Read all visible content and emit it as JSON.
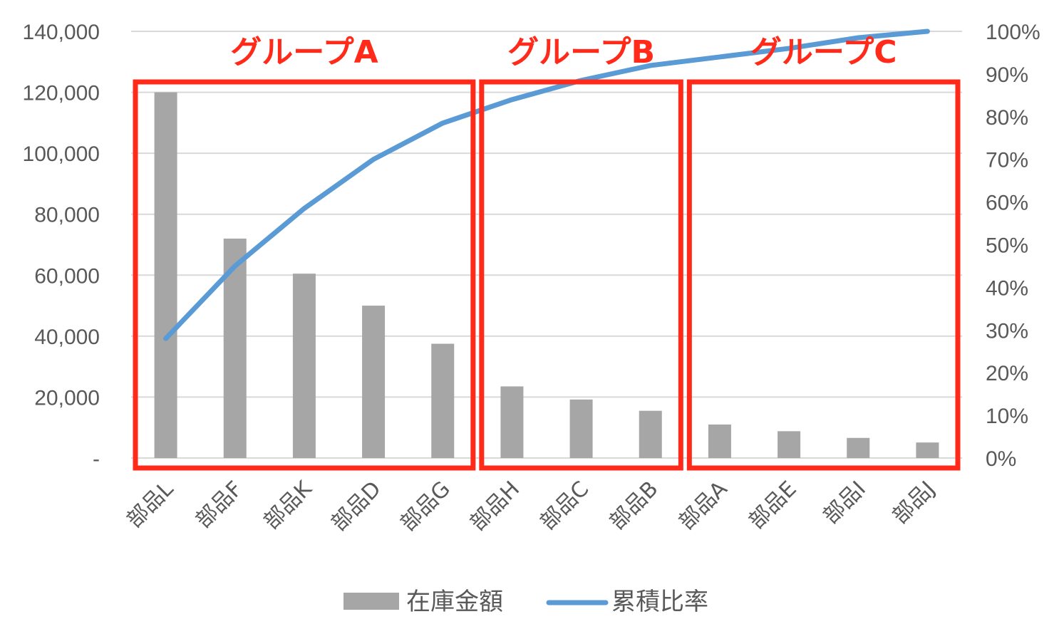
{
  "chart_data": {
    "type": "bar",
    "categories": [
      "部品L",
      "部品F",
      "部品K",
      "部品D",
      "部品G",
      "部品H",
      "部品C",
      "部品B",
      "部品A",
      "部品E",
      "部品I",
      "部品J"
    ],
    "series": [
      {
        "name": "在庫金額",
        "type": "bar",
        "axis": "left",
        "color": "#a6a6a6",
        "values": [
          120000,
          72000,
          60500,
          50000,
          37500,
          23500,
          19200,
          15500,
          11000,
          8800,
          6600,
          5100
        ]
      },
      {
        "name": "累積比率",
        "type": "line",
        "axis": "right",
        "color": "#5b9bd5",
        "values": [
          0.28,
          0.45,
          0.585,
          0.7,
          0.785,
          0.84,
          0.885,
          0.92,
          0.94,
          0.96,
          0.985,
          1.0
        ]
      }
    ],
    "y_left": {
      "ylim": [
        0,
        140000
      ],
      "ticks": [
        0,
        20000,
        40000,
        60000,
        80000,
        100000,
        120000,
        140000
      ],
      "tick_labels": [
        "-",
        "20,000",
        "40,000",
        "60,000",
        "80,000",
        "100,000",
        "120,000",
        "140,000"
      ]
    },
    "y_right": {
      "ylim": [
        0,
        1
      ],
      "ticks": [
        0,
        0.1,
        0.2,
        0.3,
        0.4,
        0.5,
        0.6,
        0.7,
        0.8,
        0.9,
        1.0
      ],
      "tick_labels": [
        "0%",
        "10%",
        "20%",
        "30%",
        "40%",
        "50%",
        "60%",
        "70%",
        "80%",
        "90%",
        "100%"
      ]
    },
    "grid": true,
    "legend": "bottom",
    "groups": [
      {
        "label": "グループA",
        "from": 0,
        "to": 4,
        "color": "#ff2a1a"
      },
      {
        "label": "グループB",
        "from": 5,
        "to": 7,
        "color": "#ff2a1a"
      },
      {
        "label": "グループC",
        "from": 8,
        "to": 11,
        "color": "#ff2a1a"
      }
    ]
  }
}
